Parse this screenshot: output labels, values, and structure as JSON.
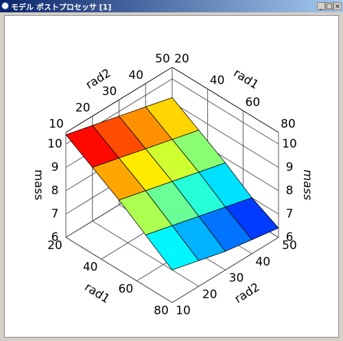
{
  "window": {
    "title": "モデル ポストプロセッサ [1]",
    "buttons": [
      "_",
      "□",
      "×"
    ]
  },
  "chart_data": {
    "type": "surface3d",
    "x_label": "rad1",
    "y_label": "rad2",
    "z_label": "mass",
    "x": [
      20,
      35,
      50,
      65,
      80
    ],
    "y": [
      10,
      20,
      30,
      40,
      50
    ],
    "z": [
      [
        10.4,
        10.1,
        9.8,
        9.5,
        9.2
      ],
      [
        9.7,
        9.4,
        9.1,
        8.8,
        8.5
      ],
      [
        9.0,
        8.7,
        8.4,
        8.1,
        7.8
      ],
      [
        8.2,
        7.9,
        7.6,
        7.3,
        7.0
      ],
      [
        7.4,
        7.1,
        6.8,
        6.6,
        6.4
      ]
    ],
    "xlim": [
      20,
      80
    ],
    "ylim": [
      10,
      50
    ],
    "zlim": [
      6,
      10.5
    ],
    "xticks": [
      20,
      40,
      60,
      80
    ],
    "yticks": [
      10,
      20,
      30,
      40,
      50
    ],
    "zticks": [
      6,
      7,
      8,
      9,
      10
    ],
    "grid": true
  }
}
